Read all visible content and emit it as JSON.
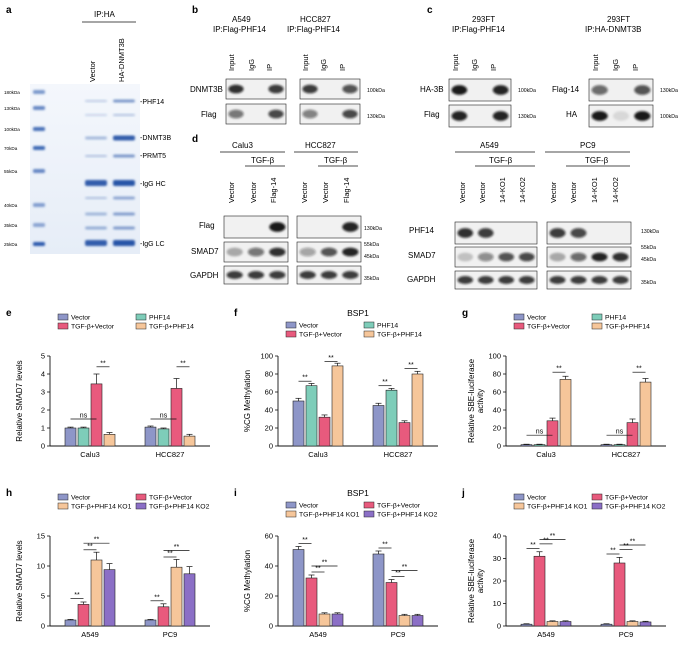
{
  "panel_a": {
    "label": "a",
    "header": "IP:HA",
    "lanes": [
      "Vector",
      "HA-DNMT3B"
    ],
    "ladder_markers": [
      "180kDa",
      "130kDa",
      "100kDa",
      "70kDa",
      "55kDa",
      "40kDa",
      "35kDa",
      "25kDa"
    ],
    "band_labels": [
      "PHF14",
      "DNMT3B",
      "PRMT5",
      "IgG HC",
      "IgG LC"
    ]
  },
  "panel_b": {
    "label": "b",
    "blots": [
      {
        "cell": "A549",
        "ip": "IP:Flag-PHF14",
        "lanes": [
          "Input",
          "IgG",
          "IP"
        ]
      },
      {
        "cell": "HCC827",
        "ip": "IP:Flag-PHF14",
        "lanes": [
          "Input",
          "IgG",
          "IP"
        ]
      }
    ],
    "rows": [
      "DNMT3B",
      "Flag"
    ],
    "markers": [
      "100kDa",
      "130kDa"
    ]
  },
  "panel_c": {
    "label": "c",
    "blots": [
      {
        "cell": "293FT",
        "ip": "IP:Flag-PHF14",
        "lanes": [
          "Input",
          "IgG",
          "IP"
        ],
        "rows": [
          "HA-3B",
          "Flag"
        ],
        "markers": [
          "100kDa",
          "130kDa"
        ]
      },
      {
        "cell": "293FT",
        "ip": "IP:HA-DNMT3B",
        "lanes": [
          "Input",
          "IgG",
          "IP"
        ],
        "rows": [
          "Flag-14",
          "HA"
        ],
        "markers": [
          "130kDa",
          "100kDa"
        ]
      }
    ]
  },
  "panel_d": {
    "label": "d",
    "treatment": "TGF-β",
    "left": {
      "cells": [
        "Calu3",
        "HCC827"
      ],
      "lanes": [
        "Vector",
        "Vector",
        "Flag-14"
      ],
      "rows": [
        "Flag",
        "SMAD7",
        "GAPDH"
      ],
      "markers": [
        "130kDa",
        "55kDa",
        "45kDa",
        "35kDa"
      ]
    },
    "right": {
      "cells": [
        "A549",
        "PC9"
      ],
      "lanes": [
        "Vector",
        "Vector",
        "14-KO1",
        "14-KO2"
      ],
      "rows": [
        "PHF14",
        "SMAD7",
        "GAPDH"
      ],
      "markers": [
        "130kDa",
        "55kDa",
        "45kDa",
        "35kDa"
      ]
    }
  },
  "colors": {
    "vector": "#8e96c8",
    "phf14": "#7ecdb9",
    "tgf_vector": "#e85a7d",
    "tgf_phf14": "#f6c69a",
    "tgf_ko1": "#f6c69a",
    "tgf_ko2": "#8b6fc6"
  },
  "chart_data": [
    {
      "id": "e",
      "label": "e",
      "type": "bar",
      "title": "",
      "ylabel": "Relative SMAD7 levels",
      "ylim": [
        0,
        5
      ],
      "yticks": [
        0,
        1,
        2,
        3,
        4,
        5
      ],
      "legend_cols": 2,
      "categories": [
        "Calu3",
        "HCC827"
      ],
      "series": [
        {
          "name": "Vector",
          "color": "#8e96c8",
          "values": [
            1.0,
            1.05
          ],
          "err": [
            0.05,
            0.06
          ]
        },
        {
          "name": "PHF14",
          "color": "#7ecdb9",
          "values": [
            1.0,
            0.95
          ],
          "err": [
            0.05,
            0.05
          ]
        },
        {
          "name": "TGF-β+Vector",
          "color": "#e85a7d",
          "values": [
            3.45,
            3.2
          ],
          "err": [
            0.55,
            0.55
          ]
        },
        {
          "name": "TGF-β+PHF14",
          "color": "#f6c69a",
          "values": [
            0.65,
            0.55
          ],
          "err": [
            0.1,
            0.1
          ]
        }
      ],
      "sig": [
        {
          "cat": 0,
          "from": 0,
          "to": 2,
          "label": "ns",
          "level": 1.5
        },
        {
          "cat": 0,
          "from": 2,
          "to": 3,
          "label": "**",
          "level": 4.4
        },
        {
          "cat": 1,
          "from": 0,
          "to": 2,
          "label": "ns",
          "level": 1.5
        },
        {
          "cat": 1,
          "from": 2,
          "to": 3,
          "label": "**",
          "level": 4.4
        }
      ]
    },
    {
      "id": "f",
      "label": "f",
      "type": "bar",
      "title": "BSP1",
      "ylabel": "%CG Methylation",
      "ylim": [
        0,
        100
      ],
      "yticks": [
        0,
        20,
        40,
        60,
        80,
        100
      ],
      "legend_cols": 2,
      "categories": [
        "Calu3",
        "HCC827"
      ],
      "series": [
        {
          "name": "Vector",
          "color": "#8e96c8",
          "values": [
            50,
            45
          ],
          "err": [
            3,
            2.5
          ]
        },
        {
          "name": "PHF14",
          "color": "#7ecdb9",
          "values": [
            67,
            62
          ],
          "err": [
            2.5,
            2
          ]
        },
        {
          "name": "TGF-β+Vector",
          "color": "#e85a7d",
          "values": [
            32,
            26
          ],
          "err": [
            2.5,
            2
          ]
        },
        {
          "name": "TGF-β+PHF14",
          "color": "#f6c69a",
          "values": [
            89,
            80
          ],
          "err": [
            3,
            3
          ]
        }
      ],
      "sig": [
        {
          "cat": 0,
          "from": 0,
          "to": 1,
          "label": "**",
          "level": 72
        },
        {
          "cat": 0,
          "from": 2,
          "to": 3,
          "label": "**",
          "level": 94
        },
        {
          "cat": 1,
          "from": 0,
          "to": 1,
          "label": "**",
          "level": 67
        },
        {
          "cat": 1,
          "from": 2,
          "to": 3,
          "label": "**",
          "level": 86
        }
      ]
    },
    {
      "id": "g",
      "label": "g",
      "type": "bar",
      "title": "",
      "ylabel": "Relative SBE-luciferase activity",
      "ylim": [
        0,
        100
      ],
      "yticks": [
        0,
        20,
        40,
        60,
        80,
        100
      ],
      "legend_cols": 2,
      "categories": [
        "Calu3",
        "HCC827"
      ],
      "series": [
        {
          "name": "Vector",
          "color": "#8e96c8",
          "values": [
            1.5,
            1.5
          ],
          "err": [
            0.5,
            0.5
          ]
        },
        {
          "name": "PHF14",
          "color": "#7ecdb9",
          "values": [
            1.5,
            1.5
          ],
          "err": [
            0.5,
            0.5
          ]
        },
        {
          "name": "TGF-β+Vector",
          "color": "#e85a7d",
          "values": [
            28,
            26
          ],
          "err": [
            3,
            4
          ]
        },
        {
          "name": "TGF-β+PHF14",
          "color": "#f6c69a",
          "values": [
            74,
            71
          ],
          "err": [
            3.5,
            4
          ]
        }
      ],
      "sig": [
        {
          "cat": 0,
          "from": 0,
          "to": 2,
          "label": "ns",
          "level": 12
        },
        {
          "cat": 0,
          "from": 2,
          "to": 3,
          "label": "**",
          "level": 82
        },
        {
          "cat": 1,
          "from": 0,
          "to": 2,
          "label": "ns",
          "level": 12
        },
        {
          "cat": 1,
          "from": 2,
          "to": 3,
          "label": "**",
          "level": 82
        }
      ]
    },
    {
      "id": "h",
      "label": "h",
      "type": "bar",
      "title": "",
      "ylabel": "Relative SMAD7 levels",
      "ylim": [
        0,
        15
      ],
      "yticks": [
        0,
        5,
        10,
        15
      ],
      "legend_cols": 2,
      "categories": [
        "A549",
        "PC9"
      ],
      "series": [
        {
          "name": "Vector",
          "color": "#8e96c8",
          "values": [
            1.0,
            1.0
          ],
          "err": [
            0.1,
            0.1
          ]
        },
        {
          "name": "TGF-β+Vector",
          "color": "#e85a7d",
          "values": [
            3.6,
            3.2
          ],
          "err": [
            0.4,
            0.5
          ]
        },
        {
          "name": "TGF-β+PHF14 KO1",
          "color": "#f6c69a",
          "values": [
            11.0,
            9.8
          ],
          "err": [
            1.3,
            1.3
          ]
        },
        {
          "name": "TGF-β+PHF14 KO2",
          "color": "#8b6fc6",
          "values": [
            9.4,
            8.7
          ],
          "err": [
            1.0,
            1.2
          ]
        }
      ],
      "sig": [
        {
          "cat": 0,
          "from": 0,
          "to": 1,
          "label": "**",
          "level": 4.6
        },
        {
          "cat": 0,
          "from": 1,
          "to": 2,
          "label": "**",
          "level": 12.7
        },
        {
          "cat": 0,
          "from": 1,
          "to": 3,
          "label": "**",
          "level": 13.8
        },
        {
          "cat": 1,
          "from": 0,
          "to": 1,
          "label": "**",
          "level": 4.2
        },
        {
          "cat": 1,
          "from": 1,
          "to": 2,
          "label": "**",
          "level": 11.5
        },
        {
          "cat": 1,
          "from": 1,
          "to": 3,
          "label": "**",
          "level": 12.6
        }
      ]
    },
    {
      "id": "i",
      "label": "i",
      "type": "bar",
      "title": "BSP1",
      "ylabel": "%CG Methylation",
      "ylim": [
        0,
        60
      ],
      "yticks": [
        0,
        20,
        40,
        60
      ],
      "legend_cols": 2,
      "categories": [
        "A549",
        "PC9"
      ],
      "series": [
        {
          "name": "Vector",
          "color": "#8e96c8",
          "values": [
            51,
            48
          ],
          "err": [
            2,
            2
          ]
        },
        {
          "name": "TGF-β+Vector",
          "color": "#e85a7d",
          "values": [
            32,
            29
          ],
          "err": [
            2,
            2
          ]
        },
        {
          "name": "TGF-β+PHF14 KO1",
          "color": "#f6c69a",
          "values": [
            8,
            7
          ],
          "err": [
            0.8,
            0.8
          ]
        },
        {
          "name": "TGF-β+PHF14 KO2",
          "color": "#8b6fc6",
          "values": [
            8,
            7
          ],
          "err": [
            0.8,
            0.8
          ]
        }
      ],
      "sig": [
        {
          "cat": 0,
          "from": 0,
          "to": 1,
          "label": "**",
          "level": 55
        },
        {
          "cat": 0,
          "from": 1,
          "to": 2,
          "label": "**",
          "level": 36
        },
        {
          "cat": 0,
          "from": 1,
          "to": 3,
          "label": "**",
          "level": 40
        },
        {
          "cat": 1,
          "from": 0,
          "to": 1,
          "label": "**",
          "level": 52
        },
        {
          "cat": 1,
          "from": 1,
          "to": 2,
          "label": "**",
          "level": 33
        },
        {
          "cat": 1,
          "from": 1,
          "to": 3,
          "label": "**",
          "level": 37
        }
      ]
    },
    {
      "id": "j",
      "label": "j",
      "type": "bar",
      "title": "",
      "ylabel": "Relative SBE-luciferase activity",
      "ylim": [
        0,
        40
      ],
      "yticks": [
        0,
        10,
        20,
        30,
        40
      ],
      "legend_cols": 2,
      "categories": [
        "A549",
        "PC9"
      ],
      "series": [
        {
          "name": "Vector",
          "color": "#8e96c8",
          "values": [
            0.8,
            0.8
          ],
          "err": [
            0.2,
            0.2
          ]
        },
        {
          "name": "TGF-β+Vector",
          "color": "#e85a7d",
          "values": [
            31,
            28
          ],
          "err": [
            2,
            2.5
          ]
        },
        {
          "name": "TGF-β+PHF14 KO1",
          "color": "#f6c69a",
          "values": [
            2,
            2
          ],
          "err": [
            0.3,
            0.3
          ]
        },
        {
          "name": "TGF-β+PHF14 KO2",
          "color": "#8b6fc6",
          "values": [
            2,
            1.8
          ],
          "err": [
            0.3,
            0.3
          ]
        }
      ],
      "sig": [
        {
          "cat": 0,
          "from": 0,
          "to": 1,
          "label": "**",
          "level": 34.5
        },
        {
          "cat": 0,
          "from": 1,
          "to": 2,
          "label": "**",
          "level": 36.5
        },
        {
          "cat": 0,
          "from": 1,
          "to": 3,
          "label": "**",
          "level": 38.5
        },
        {
          "cat": 1,
          "from": 0,
          "to": 1,
          "label": "**",
          "level": 32
        },
        {
          "cat": 1,
          "from": 1,
          "to": 2,
          "label": "**",
          "level": 34
        },
        {
          "cat": 1,
          "from": 1,
          "to": 3,
          "label": "**",
          "level": 36
        }
      ]
    }
  ]
}
